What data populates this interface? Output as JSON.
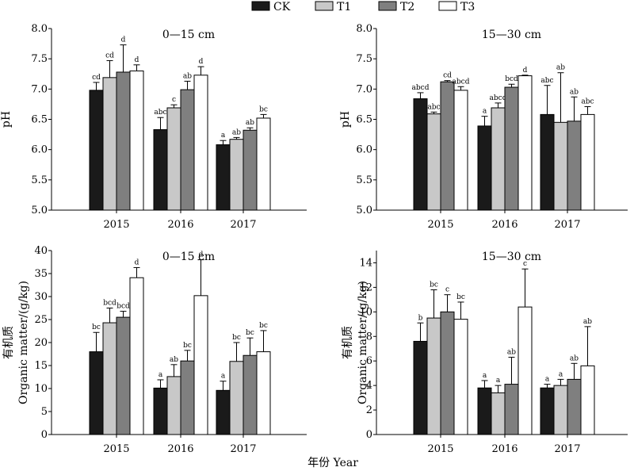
{
  "legend": {
    "entries": [
      {
        "name": "CK",
        "color": "#1a1a1a"
      },
      {
        "name": "T1",
        "color": "#c8c8c8"
      },
      {
        "name": "T2",
        "color": "#7f7f7f"
      },
      {
        "name": "T3",
        "color": "#ffffff"
      }
    ]
  },
  "x_axis_title": "年份 Year",
  "chart_data": [
    {
      "type": "bar",
      "title": "0—15 cm",
      "ylabel": "pH",
      "ylim": [
        5.0,
        8.0
      ],
      "yticks": [
        "5.0",
        "5.5",
        "6.0",
        "6.5",
        "7.0",
        "7.5",
        "8.0"
      ],
      "categories": [
        "2015",
        "2016",
        "2017"
      ],
      "series": [
        {
          "name": "CK",
          "values": [
            6.98,
            6.33,
            6.08
          ],
          "errors": [
            0.13,
            0.2,
            0.07
          ],
          "letters": [
            "cd",
            "abc",
            "a"
          ]
        },
        {
          "name": "T1",
          "values": [
            7.19,
            6.69,
            6.17
          ],
          "errors": [
            0.28,
            0.05,
            0.03
          ],
          "letters": [
            "cd",
            "c",
            "ab"
          ]
        },
        {
          "name": "T2",
          "values": [
            7.28,
            6.99,
            6.32
          ],
          "errors": [
            0.45,
            0.14,
            0.04
          ],
          "letters": [
            "d",
            "ab",
            "ab"
          ]
        },
        {
          "name": "T3",
          "values": [
            7.3,
            7.23,
            6.52
          ],
          "errors": [
            0.1,
            0.14,
            0.06
          ],
          "letters": [
            "d",
            "d",
            "bc"
          ]
        }
      ]
    },
    {
      "type": "bar",
      "title": "15—30 cm",
      "ylabel": "pH",
      "ylim": [
        5.0,
        8.0
      ],
      "yticks": [
        "5.0",
        "5.5",
        "6.0",
        "6.5",
        "7.0",
        "7.5",
        "8.0"
      ],
      "categories": [
        "2015",
        "2016",
        "2017"
      ],
      "series": [
        {
          "name": "CK",
          "values": [
            6.84,
            6.39,
            6.58
          ],
          "errors": [
            0.1,
            0.16,
            0.48
          ],
          "letters": [
            "abcd",
            "a",
            "abc"
          ]
        },
        {
          "name": "T1",
          "values": [
            6.59,
            6.69,
            6.45
          ],
          "errors": [
            0.03,
            0.08,
            0.82
          ],
          "letters": [
            "abc",
            "abcd",
            "ab"
          ]
        },
        {
          "name": "T2",
          "values": [
            7.12,
            7.03,
            6.47
          ],
          "errors": [
            0.02,
            0.05,
            0.4
          ],
          "letters": [
            "cd",
            "bcd",
            "ab"
          ]
        },
        {
          "name": "T3",
          "values": [
            6.98,
            7.22,
            6.58
          ],
          "errors": [
            0.06,
            0.01,
            0.13
          ],
          "letters": [
            "abcd",
            "d",
            "abc"
          ]
        }
      ]
    },
    {
      "type": "bar",
      "title": "0—15 cm",
      "ylabel": "有机质",
      "ylabel_en": "Organic matter/(g/kg)",
      "ylim": [
        0,
        40
      ],
      "yticks": [
        "0",
        "5",
        "10",
        "15",
        "20",
        "25",
        "30",
        "35",
        "40"
      ],
      "categories": [
        "2015",
        "2016",
        "2017"
      ],
      "series": [
        {
          "name": "CK",
          "values": [
            18.0,
            10.1,
            9.6
          ],
          "errors": [
            4.2,
            1.8,
            2.0
          ],
          "letters": [
            "bc",
            "a",
            "a"
          ]
        },
        {
          "name": "T1",
          "values": [
            24.3,
            12.6,
            15.9
          ],
          "errors": [
            3.2,
            2.6,
            4.1
          ],
          "letters": [
            "bcd",
            "ab",
            "bc"
          ]
        },
        {
          "name": "T2",
          "values": [
            25.5,
            16.0,
            17.2
          ],
          "errors": [
            1.3,
            2.3,
            3.8
          ],
          "letters": [
            "bcd",
            "bc",
            "bc"
          ]
        },
        {
          "name": "T3",
          "values": [
            34.1,
            30.2,
            18.0
          ],
          "errors": [
            2.2,
            7.8,
            4.6
          ],
          "letters": [
            "d",
            "d",
            "bc"
          ]
        }
      ]
    },
    {
      "type": "bar",
      "title": "15—30 cm",
      "ylabel": "有机质",
      "ylabel_en": "Organic matter/(g/kg)",
      "ylim": [
        0,
        15
      ],
      "yticks": [
        "0",
        "2",
        "4",
        "6",
        "8",
        "10",
        "12",
        "14"
      ],
      "categories": [
        "2015",
        "2016",
        "2017"
      ],
      "series": [
        {
          "name": "CK",
          "values": [
            7.6,
            3.8,
            3.8
          ],
          "errors": [
            1.5,
            0.6,
            0.3
          ],
          "letters": [
            "b",
            "a",
            "a"
          ]
        },
        {
          "name": "T1",
          "values": [
            9.5,
            3.4,
            4.0
          ],
          "errors": [
            2.3,
            0.6,
            0.5
          ],
          "letters": [
            "bc",
            "a",
            "a"
          ]
        },
        {
          "name": "T2",
          "values": [
            10.0,
            4.1,
            4.5
          ],
          "errors": [
            1.4,
            2.2,
            1.3
          ],
          "letters": [
            "c",
            "ab",
            "ab"
          ]
        },
        {
          "name": "T3",
          "values": [
            9.4,
            10.4,
            5.6
          ],
          "errors": [
            1.4,
            3.1,
            3.2
          ],
          "letters": [
            "bc",
            "c",
            "ab"
          ]
        }
      ]
    }
  ]
}
